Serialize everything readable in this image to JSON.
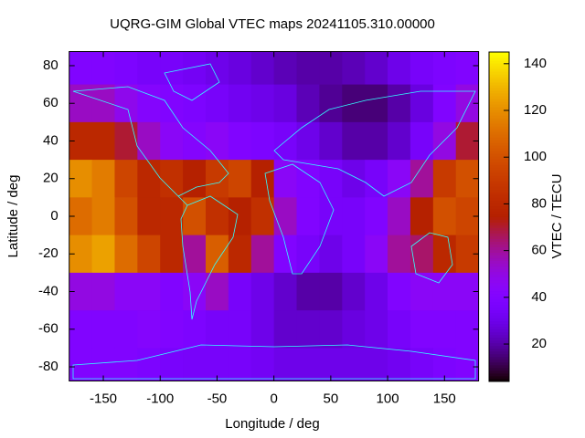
{
  "chart_data": {
    "type": "heatmap",
    "title": "UQRG-GIM Global VTEC maps 20241105.310.00000",
    "x_label": "Longitude / deg",
    "y_label": "Latitude / deg",
    "colorbar_label": "VTEC / TECU",
    "x": [
      -170,
      -150,
      -130,
      -110,
      -90,
      -70,
      -50,
      -30,
      -10,
      10,
      30,
      50,
      70,
      90,
      110,
      130,
      150,
      170
    ],
    "y": [
      80,
      60,
      40,
      20,
      0,
      -20,
      -40,
      -60,
      -80
    ],
    "z": [
      [
        40,
        40,
        38,
        35,
        35,
        33,
        30,
        28,
        25,
        22,
        20,
        20,
        22,
        25,
        30,
        35,
        38,
        40
      ],
      [
        55,
        55,
        48,
        42,
        40,
        38,
        35,
        32,
        30,
        28,
        22,
        18,
        15,
        15,
        20,
        28,
        40,
        50
      ],
      [
        80,
        80,
        70,
        55,
        45,
        42,
        45,
        40,
        38,
        35,
        30,
        25,
        20,
        20,
        25,
        35,
        50,
        70
      ],
      [
        120,
        115,
        95,
        80,
        85,
        75,
        90,
        95,
        75,
        45,
        40,
        35,
        30,
        35,
        45,
        60,
        90,
        100
      ],
      [
        110,
        115,
        100,
        80,
        80,
        100,
        85,
        75,
        85,
        55,
        40,
        35,
        35,
        40,
        55,
        75,
        100,
        95
      ],
      [
        120,
        125,
        110,
        95,
        80,
        60,
        105,
        80,
        60,
        40,
        35,
        30,
        35,
        45,
        60,
        65,
        80,
        90
      ],
      [
        50,
        50,
        45,
        45,
        40,
        45,
        55,
        35,
        30,
        25,
        20,
        20,
        25,
        30,
        40,
        45,
        45,
        45
      ],
      [
        40,
        40,
        40,
        42,
        40,
        38,
        35,
        35,
        30,
        25,
        25,
        25,
        28,
        30,
        35,
        40,
        40,
        40
      ],
      [
        40,
        40,
        40,
        38,
        36,
        35,
        35,
        35,
        33,
        30,
        30,
        30,
        30,
        30,
        32,
        35,
        38,
        40
      ]
    ],
    "xlim": [
      -180,
      180
    ],
    "ylim": [
      -87.5,
      87.5
    ],
    "xticks": [
      -150,
      -100,
      -50,
      0,
      50,
      100,
      150
    ],
    "yticks": [
      -80,
      -60,
      -40,
      -20,
      0,
      20,
      40,
      60,
      80
    ],
    "cblim": [
      4,
      145
    ],
    "cbticks": [
      20,
      40,
      60,
      80,
      100,
      120,
      140
    ],
    "palette": "gnuplot-7-5-15"
  }
}
